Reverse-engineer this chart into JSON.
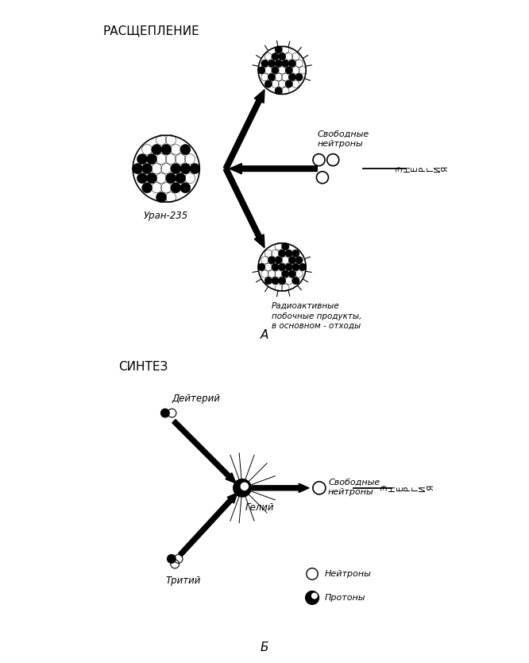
{
  "bg_color": "#ffffff",
  "top_label": "РАСЩЕПЛЕНИЕ",
  "bottom_label": "СИНТЕЗ",
  "label_A": "А",
  "label_B": "Б",
  "energia_text": "Э\nН\nЕ\nР\nГ\nИ\nЯ",
  "fission": {
    "uranium_label": "Уран-235",
    "free_neutrons_label": "Свободные\nнейтроны",
    "radioactive_label": "Радиоактивные\nпобочные продукты,\nв основном - отходы"
  },
  "fusion": {
    "helium_label": "Гелий",
    "deuterium_label": "Дейтерий",
    "tritium_label": "Тритий",
    "free_neutron_label": "Свободные\nнейтроны",
    "legend_neutron_label": "Нейтроны",
    "legend_proton_label": "Протоны"
  }
}
